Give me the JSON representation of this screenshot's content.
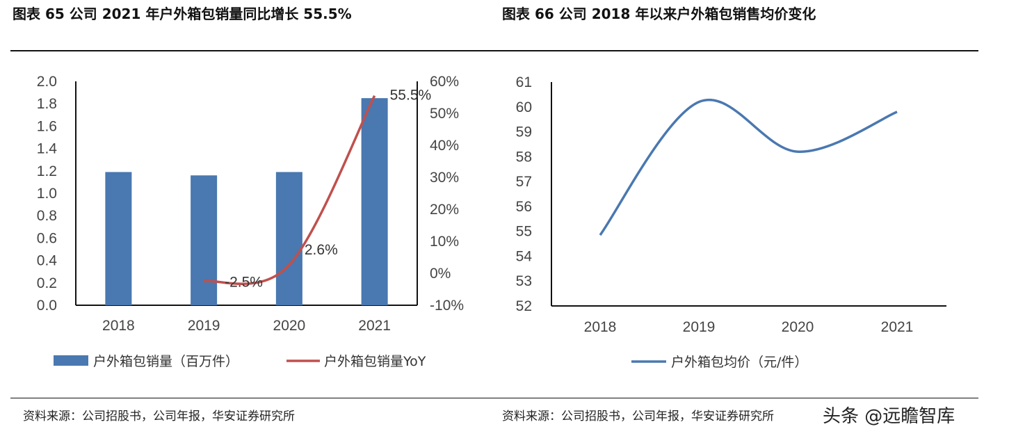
{
  "left": {
    "title": "图表 65 公司 2021 年户外箱包销量同比增长 55.5%",
    "source": "资料来源：公司招股书，公司年报，华安证券研究所"
  },
  "right": {
    "title": "图表 66  公司 2018 年以来户外箱包销售均价变化",
    "source": "资料来源：公司招股书，公司年报，华安证券研究所"
  },
  "watermark": "头条 @远瞻智库",
  "chart_data": [
    {
      "type": "bar+line",
      "categories": [
        "2018",
        "2019",
        "2020",
        "2021"
      ],
      "series": [
        {
          "name": "户外箱包销量（百万件）",
          "type": "bar",
          "axis": "left",
          "color": "#4a78b0",
          "values": [
            1.19,
            1.16,
            1.19,
            1.85
          ]
        },
        {
          "name": "户外箱包销量YoY",
          "type": "line",
          "axis": "right",
          "color": "#c0504d",
          "values": [
            null,
            -2.5,
            2.6,
            55.5
          ],
          "labels": [
            null,
            "-2.5%",
            "2.6%",
            "55.5%"
          ]
        }
      ],
      "ylim": [
        0,
        2.0
      ],
      "yticks": [
        "0.0",
        "0.2",
        "0.4",
        "0.6",
        "0.8",
        "1.0",
        "1.2",
        "1.4",
        "1.6",
        "1.8",
        "2.0"
      ],
      "y2lim": [
        -10,
        60
      ],
      "y2ticks": [
        "-10%",
        "0%",
        "10%",
        "20%",
        "30%",
        "40%",
        "50%",
        "60%"
      ],
      "legend": "bottom",
      "grid": false
    },
    {
      "type": "line",
      "categories": [
        "2018",
        "2019",
        "2020",
        "2021"
      ],
      "series": [
        {
          "name": "户外箱包均价（元/件）",
          "color": "#4a78b0",
          "values": [
            54.85,
            60.2,
            58.2,
            59.8
          ]
        }
      ],
      "ylim": [
        52,
        61
      ],
      "yticks": [
        "52",
        "53",
        "54",
        "55",
        "56",
        "57",
        "58",
        "59",
        "60",
        "61"
      ],
      "legend": "bottom",
      "grid": false
    }
  ]
}
